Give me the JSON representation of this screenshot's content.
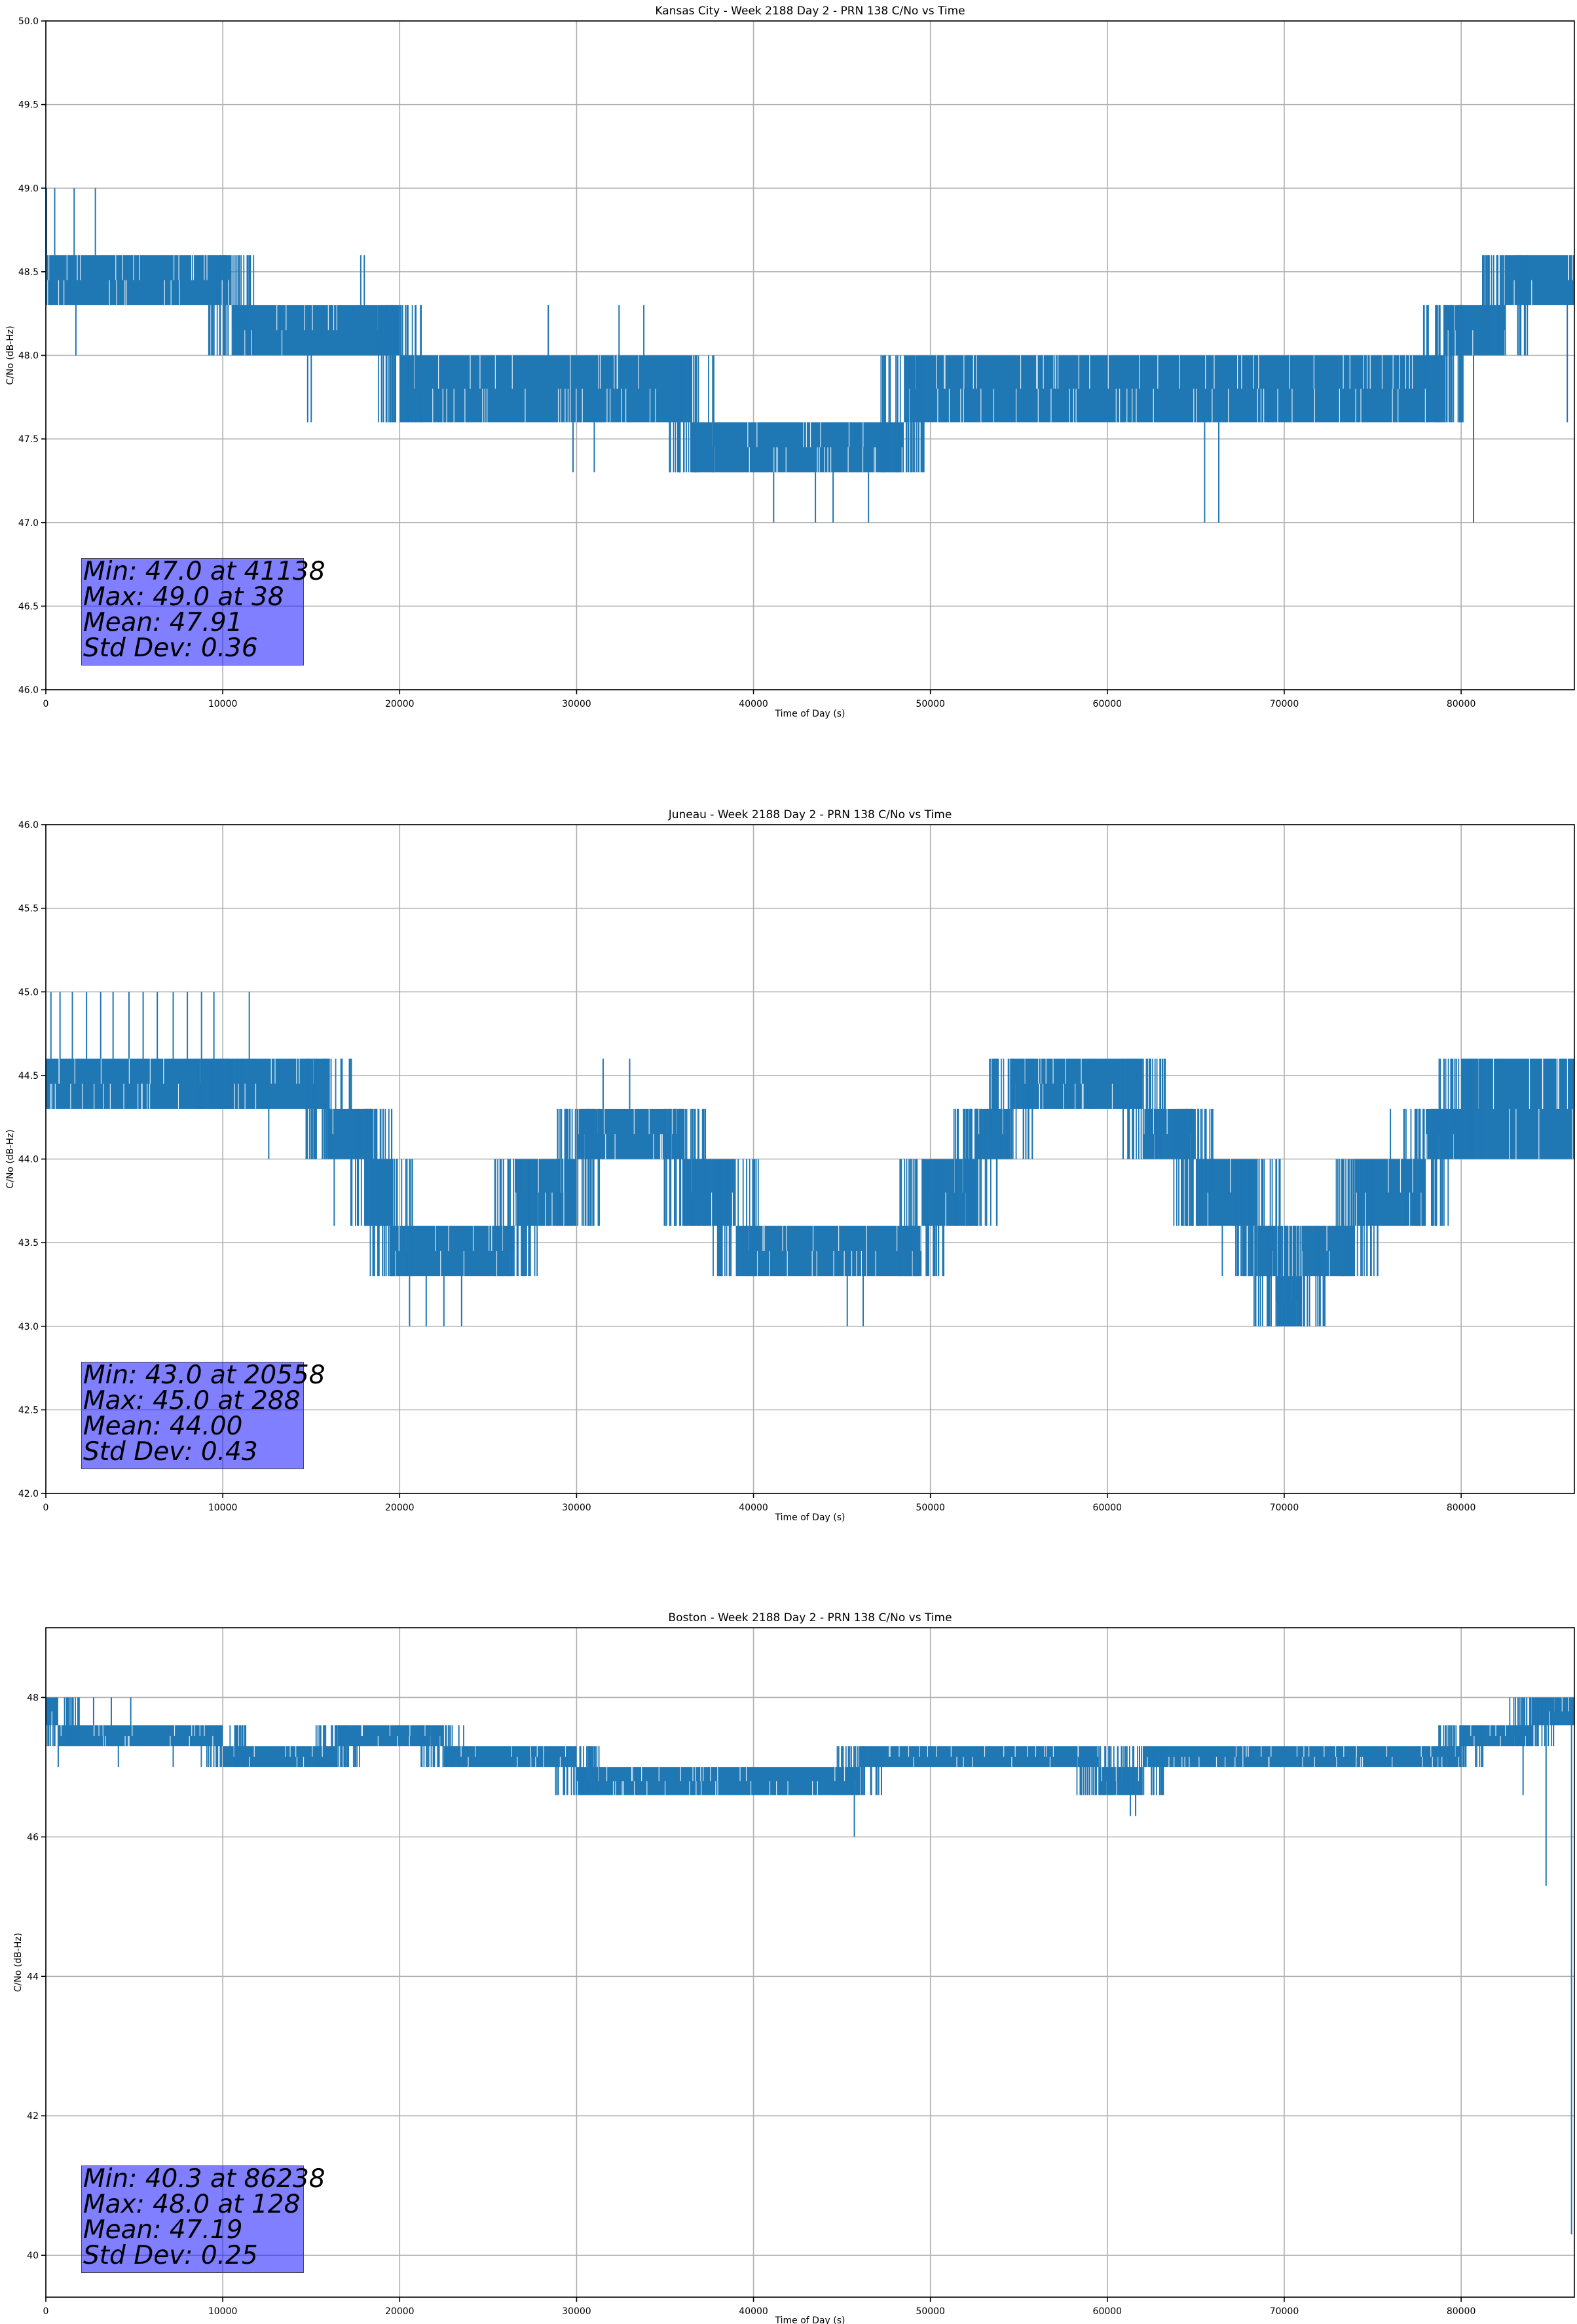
{
  "figure": {
    "line_color": "#1f77b4",
    "stats_box_color": "#8080ff"
  },
  "chart_data": [
    {
      "type": "line",
      "title": "Kansas City - Week 2188 Day 2 - PRN 138 C/No vs Time",
      "xlabel": "Time of Day (s)",
      "ylabel": "C/No (dB-Hz)",
      "xlim": [
        0,
        86400
      ],
      "ylim": [
        46.0,
        50.0
      ],
      "xticks": [
        0,
        10000,
        20000,
        30000,
        40000,
        50000,
        60000,
        70000,
        80000
      ],
      "yticks": [
        46.0,
        46.5,
        47.0,
        47.5,
        48.0,
        48.5,
        49.0,
        49.5,
        50.0
      ],
      "ytick_decimals": 1,
      "grid": true,
      "series": [
        {
          "band_levels": [
            {
              "x": [
                0,
                10500
              ],
              "lo": 48.3,
              "hi": 48.6
            },
            {
              "x": [
                10500,
                20000
              ],
              "lo": 48.0,
              "hi": 48.3
            },
            {
              "x": [
                20000,
                36500
              ],
              "lo": 47.6,
              "hi": 48.0
            },
            {
              "x": [
                36500,
                48500
              ],
              "lo": 47.3,
              "hi": 47.6
            },
            {
              "x": [
                48500,
                79000
              ],
              "lo": 47.6,
              "hi": 48.0
            },
            {
              "x": [
                79000,
                82500
              ],
              "lo": 48.0,
              "hi": 48.3
            },
            {
              "x": [
                82500,
                86400
              ],
              "lo": 48.3,
              "hi": 48.6
            }
          ],
          "spikes": [
            [
              38,
              49.0
            ],
            [
              250,
              48.6
            ],
            [
              500,
              49.0
            ],
            [
              1600,
              49.0
            ],
            [
              1700,
              48.0
            ],
            [
              2800,
              49.0
            ],
            [
              10300,
              48.0
            ],
            [
              14800,
              47.6
            ],
            [
              15000,
              47.6
            ],
            [
              17800,
              48.6
            ],
            [
              18000,
              48.6
            ],
            [
              28400,
              48.3
            ],
            [
              29800,
              47.3
            ],
            [
              31000,
              47.3
            ],
            [
              32400,
              48.3
            ],
            [
              33800,
              48.3
            ],
            [
              36200,
              47.3
            ],
            [
              41138,
              47.0
            ],
            [
              43500,
              47.0
            ],
            [
              44500,
              47.0
            ],
            [
              46500,
              47.0
            ],
            [
              65500,
              47.0
            ],
            [
              66300,
              47.0
            ],
            [
              80700,
              47.0
            ],
            [
              85000,
              48.6
            ],
            [
              86000,
              47.6
            ]
          ]
        }
      ],
      "stats": [
        "Min: 47.0 at 41138",
        "Max: 49.0 at 38",
        "Mean: 47.91",
        "Std Dev: 0.36"
      ]
    },
    {
      "type": "line",
      "title": "Juneau - Week 2188 Day 2 - PRN 138 C/No vs Time",
      "xlabel": "Time of Day (s)",
      "ylabel": "C/No (dB-Hz)",
      "xlim": [
        0,
        86400
      ],
      "ylim": [
        42.0,
        46.0
      ],
      "xticks": [
        0,
        10000,
        20000,
        30000,
        40000,
        50000,
        60000,
        70000,
        80000
      ],
      "yticks": [
        42.0,
        42.5,
        43.0,
        43.5,
        44.0,
        44.5,
        45.0,
        45.5,
        46.0
      ],
      "ytick_decimals": 1,
      "grid": true,
      "series": [
        {
          "band_levels": [
            {
              "x": [
                0,
                9800
              ],
              "lo": 44.3,
              "hi": 44.6
            },
            {
              "x": [
                9800,
                16000
              ],
              "lo": 44.3,
              "hi": 44.6
            },
            {
              "x": [
                16000,
                18500
              ],
              "lo": 44.0,
              "hi": 44.3
            },
            {
              "x": [
                18500,
                19500
              ],
              "lo": 43.6,
              "hi": 44.0
            },
            {
              "x": [
                19500,
                26500
              ],
              "lo": 43.3,
              "hi": 43.6
            },
            {
              "x": [
                26500,
                30000
              ],
              "lo": 43.6,
              "hi": 44.0
            },
            {
              "x": [
                30000,
                36000
              ],
              "lo": 44.0,
              "hi": 44.3
            },
            {
              "x": [
                36000,
                39000
              ],
              "lo": 43.6,
              "hi": 44.0
            },
            {
              "x": [
                39000,
                49500
              ],
              "lo": 43.3,
              "hi": 43.6
            },
            {
              "x": [
                49500,
                52500
              ],
              "lo": 43.6,
              "hi": 44.0
            },
            {
              "x": [
                52500,
                54500
              ],
              "lo": 44.0,
              "hi": 44.3
            },
            {
              "x": [
                54500,
                62000
              ],
              "lo": 44.3,
              "hi": 44.6
            },
            {
              "x": [
                62000,
                65000
              ],
              "lo": 44.0,
              "hi": 44.3
            },
            {
              "x": [
                65000,
                68500
              ],
              "lo": 43.6,
              "hi": 44.0
            },
            {
              "x": [
                68500,
                69500
              ],
              "lo": 43.3,
              "hi": 43.6
            },
            {
              "x": [
                69500,
                71000
              ],
              "lo": 43.0,
              "hi": 43.3
            },
            {
              "x": [
                71000,
                74000
              ],
              "lo": 43.3,
              "hi": 43.6
            },
            {
              "x": [
                74000,
                78000
              ],
              "lo": 43.6,
              "hi": 44.0
            },
            {
              "x": [
                78000,
                80000
              ],
              "lo": 44.0,
              "hi": 44.3
            },
            {
              "x": [
                80000,
                86400
              ],
              "lo": 44.0,
              "hi": 44.6
            }
          ],
          "spikes": [
            [
              288,
              45.0
            ],
            [
              800,
              45.0
            ],
            [
              1500,
              45.0
            ],
            [
              2300,
              45.0
            ],
            [
              3100,
              45.0
            ],
            [
              3800,
              45.0
            ],
            [
              4700,
              45.0
            ],
            [
              5500,
              45.0
            ],
            [
              6300,
              45.0
            ],
            [
              7200,
              45.0
            ],
            [
              8000,
              45.0
            ],
            [
              8800,
              45.0
            ],
            [
              9500,
              45.0
            ],
            [
              11500,
              45.0
            ],
            [
              12600,
              44.0
            ],
            [
              15000,
              44.0
            ],
            [
              16300,
              43.6
            ],
            [
              20558,
              43.0
            ],
            [
              21500,
              43.0
            ],
            [
              22500,
              43.0
            ],
            [
              23500,
              43.0
            ],
            [
              31500,
              44.6
            ],
            [
              33000,
              44.6
            ],
            [
              36500,
              43.6
            ],
            [
              45300,
              43.0
            ],
            [
              46200,
              43.0
            ],
            [
              59000,
              44.6
            ],
            [
              66500,
              43.3
            ],
            [
              68000,
              43.3
            ],
            [
              76000,
              44.3
            ],
            [
              82000,
              44.6
            ],
            [
              86200,
              44.0
            ]
          ]
        }
      ],
      "stats": [
        "Min: 43.0 at 20558",
        "Max: 45.0 at 288",
        "Mean: 44.00",
        "Std Dev: 0.43"
      ]
    },
    {
      "type": "line",
      "title": "Boston - Week 2188 Day 2 - PRN 138 C/No vs Time",
      "xlabel": "Time of Day (s)",
      "ylabel": "C/No (dB-Hz)",
      "xlim": [
        0,
        86400
      ],
      "ylim": [
        39.4,
        49.0
      ],
      "xticks": [
        0,
        10000,
        20000,
        30000,
        40000,
        50000,
        60000,
        70000,
        80000
      ],
      "yticks": [
        40,
        42,
        44,
        46,
        48
      ],
      "ytick_decimals": 0,
      "grid": true,
      "series": [
        {
          "band_levels": [
            {
              "x": [
                0,
                700
              ],
              "lo": 47.6,
              "hi": 48.0
            },
            {
              "x": [
                700,
                10000
              ],
              "lo": 47.3,
              "hi": 47.6
            },
            {
              "x": [
                10000,
                16500
              ],
              "lo": 47.0,
              "hi": 47.3
            },
            {
              "x": [
                16500,
                22500
              ],
              "lo": 47.3,
              "hi": 47.6
            },
            {
              "x": [
                22500,
                30000
              ],
              "lo": 47.0,
              "hi": 47.3
            },
            {
              "x": [
                30000,
                46000
              ],
              "lo": 46.6,
              "hi": 47.0
            },
            {
              "x": [
                46000,
                59500
              ],
              "lo": 47.0,
              "hi": 47.3
            },
            {
              "x": [
                59500,
                62000
              ],
              "lo": 46.6,
              "hi": 47.0
            },
            {
              "x": [
                62000,
                80000
              ],
              "lo": 47.0,
              "hi": 47.3
            },
            {
              "x": [
                80000,
                84000
              ],
              "lo": 47.3,
              "hi": 47.6
            },
            {
              "x": [
                84000,
                86400
              ],
              "lo": 47.6,
              "hi": 48.0
            }
          ],
          "spikes": [
            [
              128,
              48.0
            ],
            [
              600,
              48.0
            ],
            [
              1200,
              48.0
            ],
            [
              2700,
              48.0
            ],
            [
              3700,
              48.0
            ],
            [
              4800,
              48.0
            ],
            [
              700,
              47.0
            ],
            [
              4100,
              47.0
            ],
            [
              7200,
              47.0
            ],
            [
              45700,
              46.0
            ],
            [
              61300,
              46.3
            ],
            [
              61600,
              46.3
            ],
            [
              83500,
              46.6
            ],
            [
              84800,
              45.3
            ],
            [
              86238,
              40.3
            ]
          ]
        }
      ],
      "stats": [
        "Min: 40.3 at 86238",
        "Max: 48.0 at 128",
        "Mean: 47.19",
        "Std Dev: 0.25"
      ]
    }
  ]
}
